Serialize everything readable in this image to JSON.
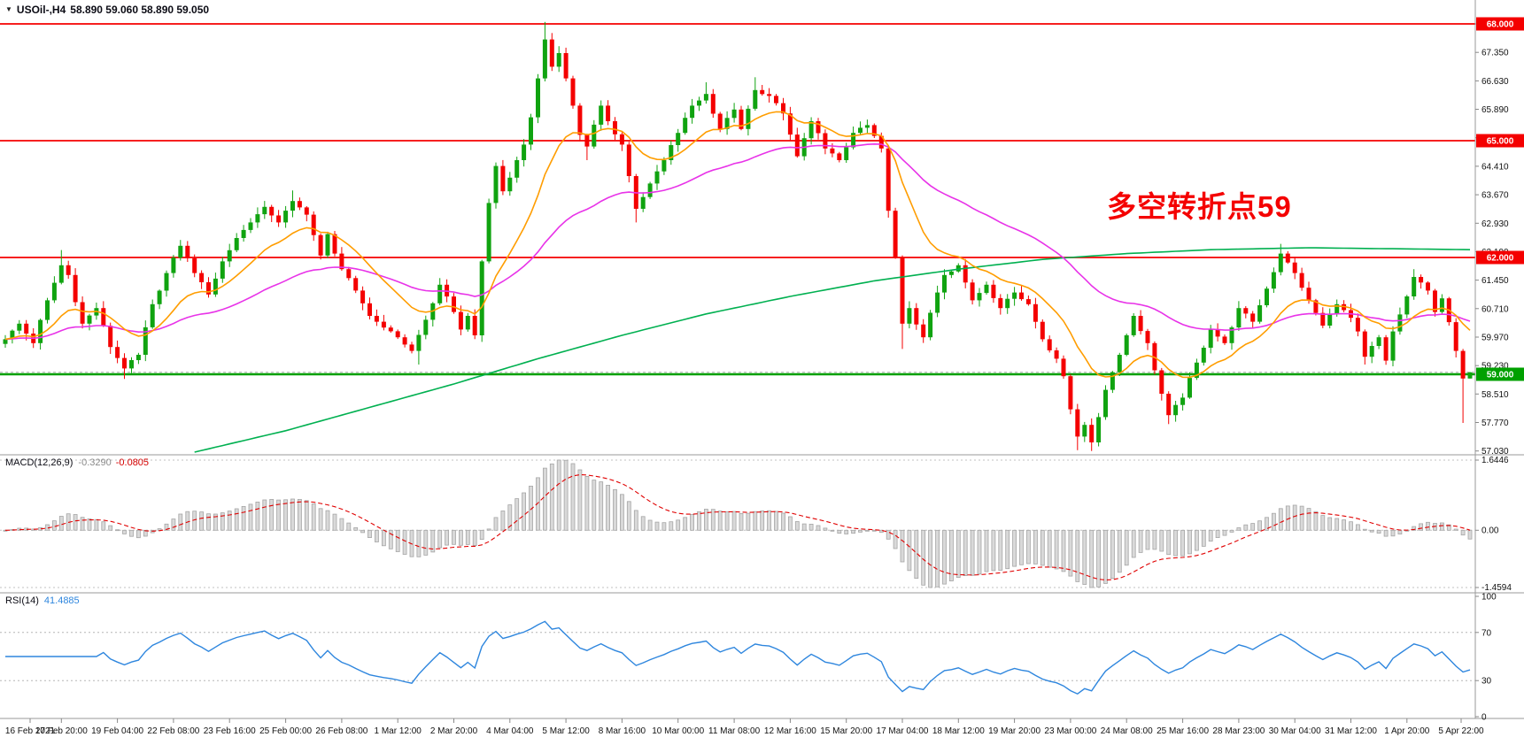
{
  "window": {
    "dropdown_icon": "▼",
    "symbol_title": "USOil-,H4",
    "ohlc_text": "58.890 59.060 58.890 59.050"
  },
  "annotation": {
    "text": "多空转折点59",
    "color": "#f40000"
  },
  "colors": {
    "bull": "#10a310",
    "bear": "#f40000",
    "ma_fast": "#ff9d00",
    "ma_mid": "#e833e8",
    "ma_slow": "#00b050",
    "hline_red": "#f40000",
    "hline_green": "#00a000",
    "bid_line": "#aaaaaa",
    "macd_hist_fill": "#d9d9d9",
    "macd_hist_stroke": "#a5a5a5",
    "macd_signal": "#e00000",
    "rsi_line": "#2e86de",
    "axis_text": "#111111",
    "separator": "#9a9a9a",
    "dotted_level": "#c0c0c0"
  },
  "price_axis": {
    "labels": [
      "68.000",
      "67.350",
      "66.630",
      "65.890",
      "65.150",
      "64.410",
      "63.670",
      "62.930",
      "62.190",
      "61.450",
      "60.710",
      "59.970",
      "59.230",
      "58.510",
      "57.770",
      "57.030"
    ]
  },
  "macd_panel": {
    "title": "MACD(12,26,9)",
    "main_value": "-0.3290",
    "signal_value": "-0.0805",
    "axis_labels": [
      "1.6446",
      "0.00",
      "-1.4594"
    ]
  },
  "rsi_panel": {
    "title": "RSI(14)",
    "value": "41.4885",
    "axis_labels": [
      "100",
      "70",
      "30",
      "0"
    ],
    "levels": [
      70,
      30
    ]
  },
  "time_axis": {
    "labels": [
      "16 Feb 2021",
      "17 Feb 20:00",
      "19 Feb 04:00",
      "22 Feb 08:00",
      "23 Feb 16:00",
      "25 Feb 00:00",
      "26 Feb 08:00",
      "1 Mar 12:00",
      "2 Mar 20:00",
      "4 Mar 04:00",
      "5 Mar 12:00",
      "8 Mar 16:00",
      "10 Mar 00:00",
      "11 Mar 08:00",
      "12 Mar 16:00",
      "15 Mar 20:00",
      "17 Mar 04:00",
      "18 Mar 12:00",
      "19 Mar 20:00",
      "23 Mar 00:00",
      "24 Mar 08:00",
      "25 Mar 16:00",
      "28 Mar 23:00",
      "30 Mar 04:00",
      "31 Mar 12:00",
      "1 Apr 20:00",
      "5 Apr 22:00"
    ]
  },
  "chart_data": {
    "type": "candlestick",
    "symbol": "USOil",
    "timeframe": "H4",
    "bars": 210,
    "bars_per_time_label": 8,
    "price_range": [
      57.03,
      68.05
    ],
    "current_price": 59.05,
    "last_ohlc": {
      "open": 58.89,
      "high": 59.06,
      "low": 58.89,
      "close": 59.05
    },
    "horizontal_lines": [
      {
        "price": 68.0,
        "label": "68.000",
        "color": "red"
      },
      {
        "price": 65.0,
        "label": "65.000",
        "color": "red"
      },
      {
        "price": 62.0,
        "label": "62.000",
        "color": "red"
      },
      {
        "price": 59.0,
        "label": "59.000",
        "color": "green"
      }
    ],
    "swing_points": [
      [
        0,
        59.9
      ],
      [
        2,
        60.3
      ],
      [
        4,
        59.8
      ],
      [
        6,
        60.9
      ],
      [
        8,
        61.8
      ],
      [
        9,
        61.55
      ],
      [
        11,
        60.3
      ],
      [
        13,
        60.7
      ],
      [
        15,
        59.7
      ],
      [
        17,
        59.15
      ],
      [
        19,
        59.5
      ],
      [
        21,
        60.8
      ],
      [
        23,
        61.6
      ],
      [
        25,
        62.3
      ],
      [
        27,
        61.6
      ],
      [
        29,
        61.05
      ],
      [
        31,
        61.9
      ],
      [
        33,
        62.5
      ],
      [
        35,
        62.9
      ],
      [
        37,
        63.3
      ],
      [
        39,
        62.9
      ],
      [
        41,
        63.45
      ],
      [
        43,
        63.1
      ],
      [
        45,
        62.05
      ],
      [
        46,
        62.6
      ],
      [
        48,
        61.7
      ],
      [
        50,
        61.15
      ],
      [
        52,
        60.5
      ],
      [
        54,
        60.2
      ],
      [
        56,
        59.95
      ],
      [
        58,
        59.6
      ],
      [
        60,
        60.4
      ],
      [
        62,
        61.3
      ],
      [
        64,
        60.6
      ],
      [
        65,
        60.15
      ],
      [
        66,
        60.5
      ],
      [
        67,
        60.0
      ],
      [
        68,
        61.9
      ],
      [
        69,
        63.4
      ],
      [
        70,
        64.35
      ],
      [
        71,
        63.7
      ],
      [
        72,
        64.05
      ],
      [
        73,
        64.5
      ],
      [
        74,
        64.9
      ],
      [
        75,
        65.6
      ],
      [
        76,
        66.6
      ],
      [
        77,
        67.6
      ],
      [
        78,
        66.9
      ],
      [
        79,
        67.25
      ],
      [
        80,
        66.6
      ],
      [
        81,
        65.9
      ],
      [
        82,
        65.15
      ],
      [
        83,
        64.85
      ],
      [
        85,
        65.9
      ],
      [
        86,
        65.5
      ],
      [
        88,
        64.9
      ],
      [
        90,
        63.25
      ],
      [
        92,
        63.9
      ],
      [
        94,
        64.5
      ],
      [
        96,
        65.2
      ],
      [
        98,
        65.9
      ],
      [
        100,
        66.2
      ],
      [
        102,
        65.3
      ],
      [
        104,
        65.8
      ],
      [
        105,
        65.3
      ],
      [
        107,
        66.3
      ],
      [
        109,
        66.15
      ],
      [
        111,
        65.7
      ],
      [
        113,
        64.6
      ],
      [
        115,
        65.5
      ],
      [
        117,
        64.8
      ],
      [
        119,
        64.5
      ],
      [
        121,
        65.2
      ],
      [
        123,
        65.4
      ],
      [
        125,
        64.8
      ],
      [
        126,
        63.2
      ],
      [
        127,
        62.0
      ],
      [
        128,
        60.3
      ],
      [
        129,
        60.7
      ],
      [
        131,
        59.95
      ],
      [
        133,
        61.1
      ],
      [
        134,
        61.55
      ],
      [
        136,
        61.8
      ],
      [
        138,
        60.9
      ],
      [
        140,
        61.3
      ],
      [
        142,
        60.7
      ],
      [
        144,
        61.1
      ],
      [
        146,
        60.8
      ],
      [
        148,
        59.9
      ],
      [
        150,
        59.4
      ],
      [
        151,
        58.95
      ],
      [
        152,
        58.1
      ],
      [
        153,
        57.4
      ],
      [
        154,
        57.7
      ],
      [
        155,
        57.25
      ],
      [
        157,
        58.6
      ],
      [
        159,
        59.5
      ],
      [
        161,
        60.5
      ],
      [
        163,
        59.8
      ],
      [
        165,
        58.5
      ],
      [
        166,
        57.95
      ],
      [
        168,
        58.4
      ],
      [
        170,
        59.3
      ],
      [
        172,
        60.15
      ],
      [
        174,
        59.8
      ],
      [
        176,
        60.7
      ],
      [
        178,
        60.35
      ],
      [
        180,
        61.2
      ],
      [
        182,
        62.1
      ],
      [
        184,
        61.6
      ],
      [
        186,
        60.9
      ],
      [
        188,
        60.25
      ],
      [
        190,
        60.8
      ],
      [
        192,
        60.45
      ],
      [
        193,
        60.1
      ],
      [
        194,
        59.45
      ],
      [
        196,
        59.95
      ],
      [
        197,
        59.35
      ],
      [
        198,
        60.1
      ],
      [
        200,
        61.0
      ],
      [
        201,
        61.5
      ],
      [
        203,
        61.15
      ],
      [
        204,
        60.6
      ],
      [
        205,
        60.95
      ],
      [
        207,
        59.6
      ],
      [
        208,
        58.89
      ],
      [
        209,
        59.05
      ]
    ],
    "wick_overrides": [
      {
        "i": 8,
        "h": 62.19
      },
      {
        "i": 17,
        "l": 58.88
      },
      {
        "i": 25,
        "h": 62.45
      },
      {
        "i": 41,
        "h": 63.72
      },
      {
        "i": 59,
        "l": 59.25
      },
      {
        "i": 77,
        "h": 68.05
      },
      {
        "i": 83,
        "l": 64.5
      },
      {
        "i": 90,
        "l": 62.9
      },
      {
        "i": 100,
        "h": 66.5
      },
      {
        "i": 107,
        "h": 66.63
      },
      {
        "i": 128,
        "l": 59.65
      },
      {
        "i": 153,
        "l": 57.05
      },
      {
        "i": 155,
        "l": 57.03
      },
      {
        "i": 166,
        "l": 57.72
      },
      {
        "i": 182,
        "h": 62.35
      },
      {
        "i": 194,
        "l": 59.25
      },
      {
        "i": 201,
        "h": 61.7
      }
    ],
    "final_candles": [
      {
        "i": 208,
        "o": 59.6,
        "h": 59.65,
        "l": 57.75,
        "c": 58.89
      },
      {
        "i": 209,
        "o": 58.89,
        "h": 59.06,
        "l": 58.89,
        "c": 59.05
      }
    ],
    "moving_averages": {
      "fast": {
        "type": "ema",
        "period": 14
      },
      "mid": {
        "type": "ema",
        "period": 45
      },
      "slow_points": [
        [
          27,
          57.0
        ],
        [
          40,
          57.55
        ],
        [
          52,
          58.15
        ],
        [
          64,
          58.75
        ],
        [
          76,
          59.4
        ],
        [
          88,
          60.0
        ],
        [
          100,
          60.55
        ],
        [
          112,
          61.0
        ],
        [
          124,
          61.4
        ],
        [
          136,
          61.7
        ],
        [
          148,
          61.95
        ],
        [
          160,
          62.1
        ],
        [
          172,
          62.2
        ],
        [
          186,
          62.25
        ],
        [
          209,
          62.2
        ]
      ]
    },
    "macd": {
      "fast": 12,
      "slow": 26,
      "signal": 9
    },
    "rsi": {
      "period": 14
    }
  }
}
